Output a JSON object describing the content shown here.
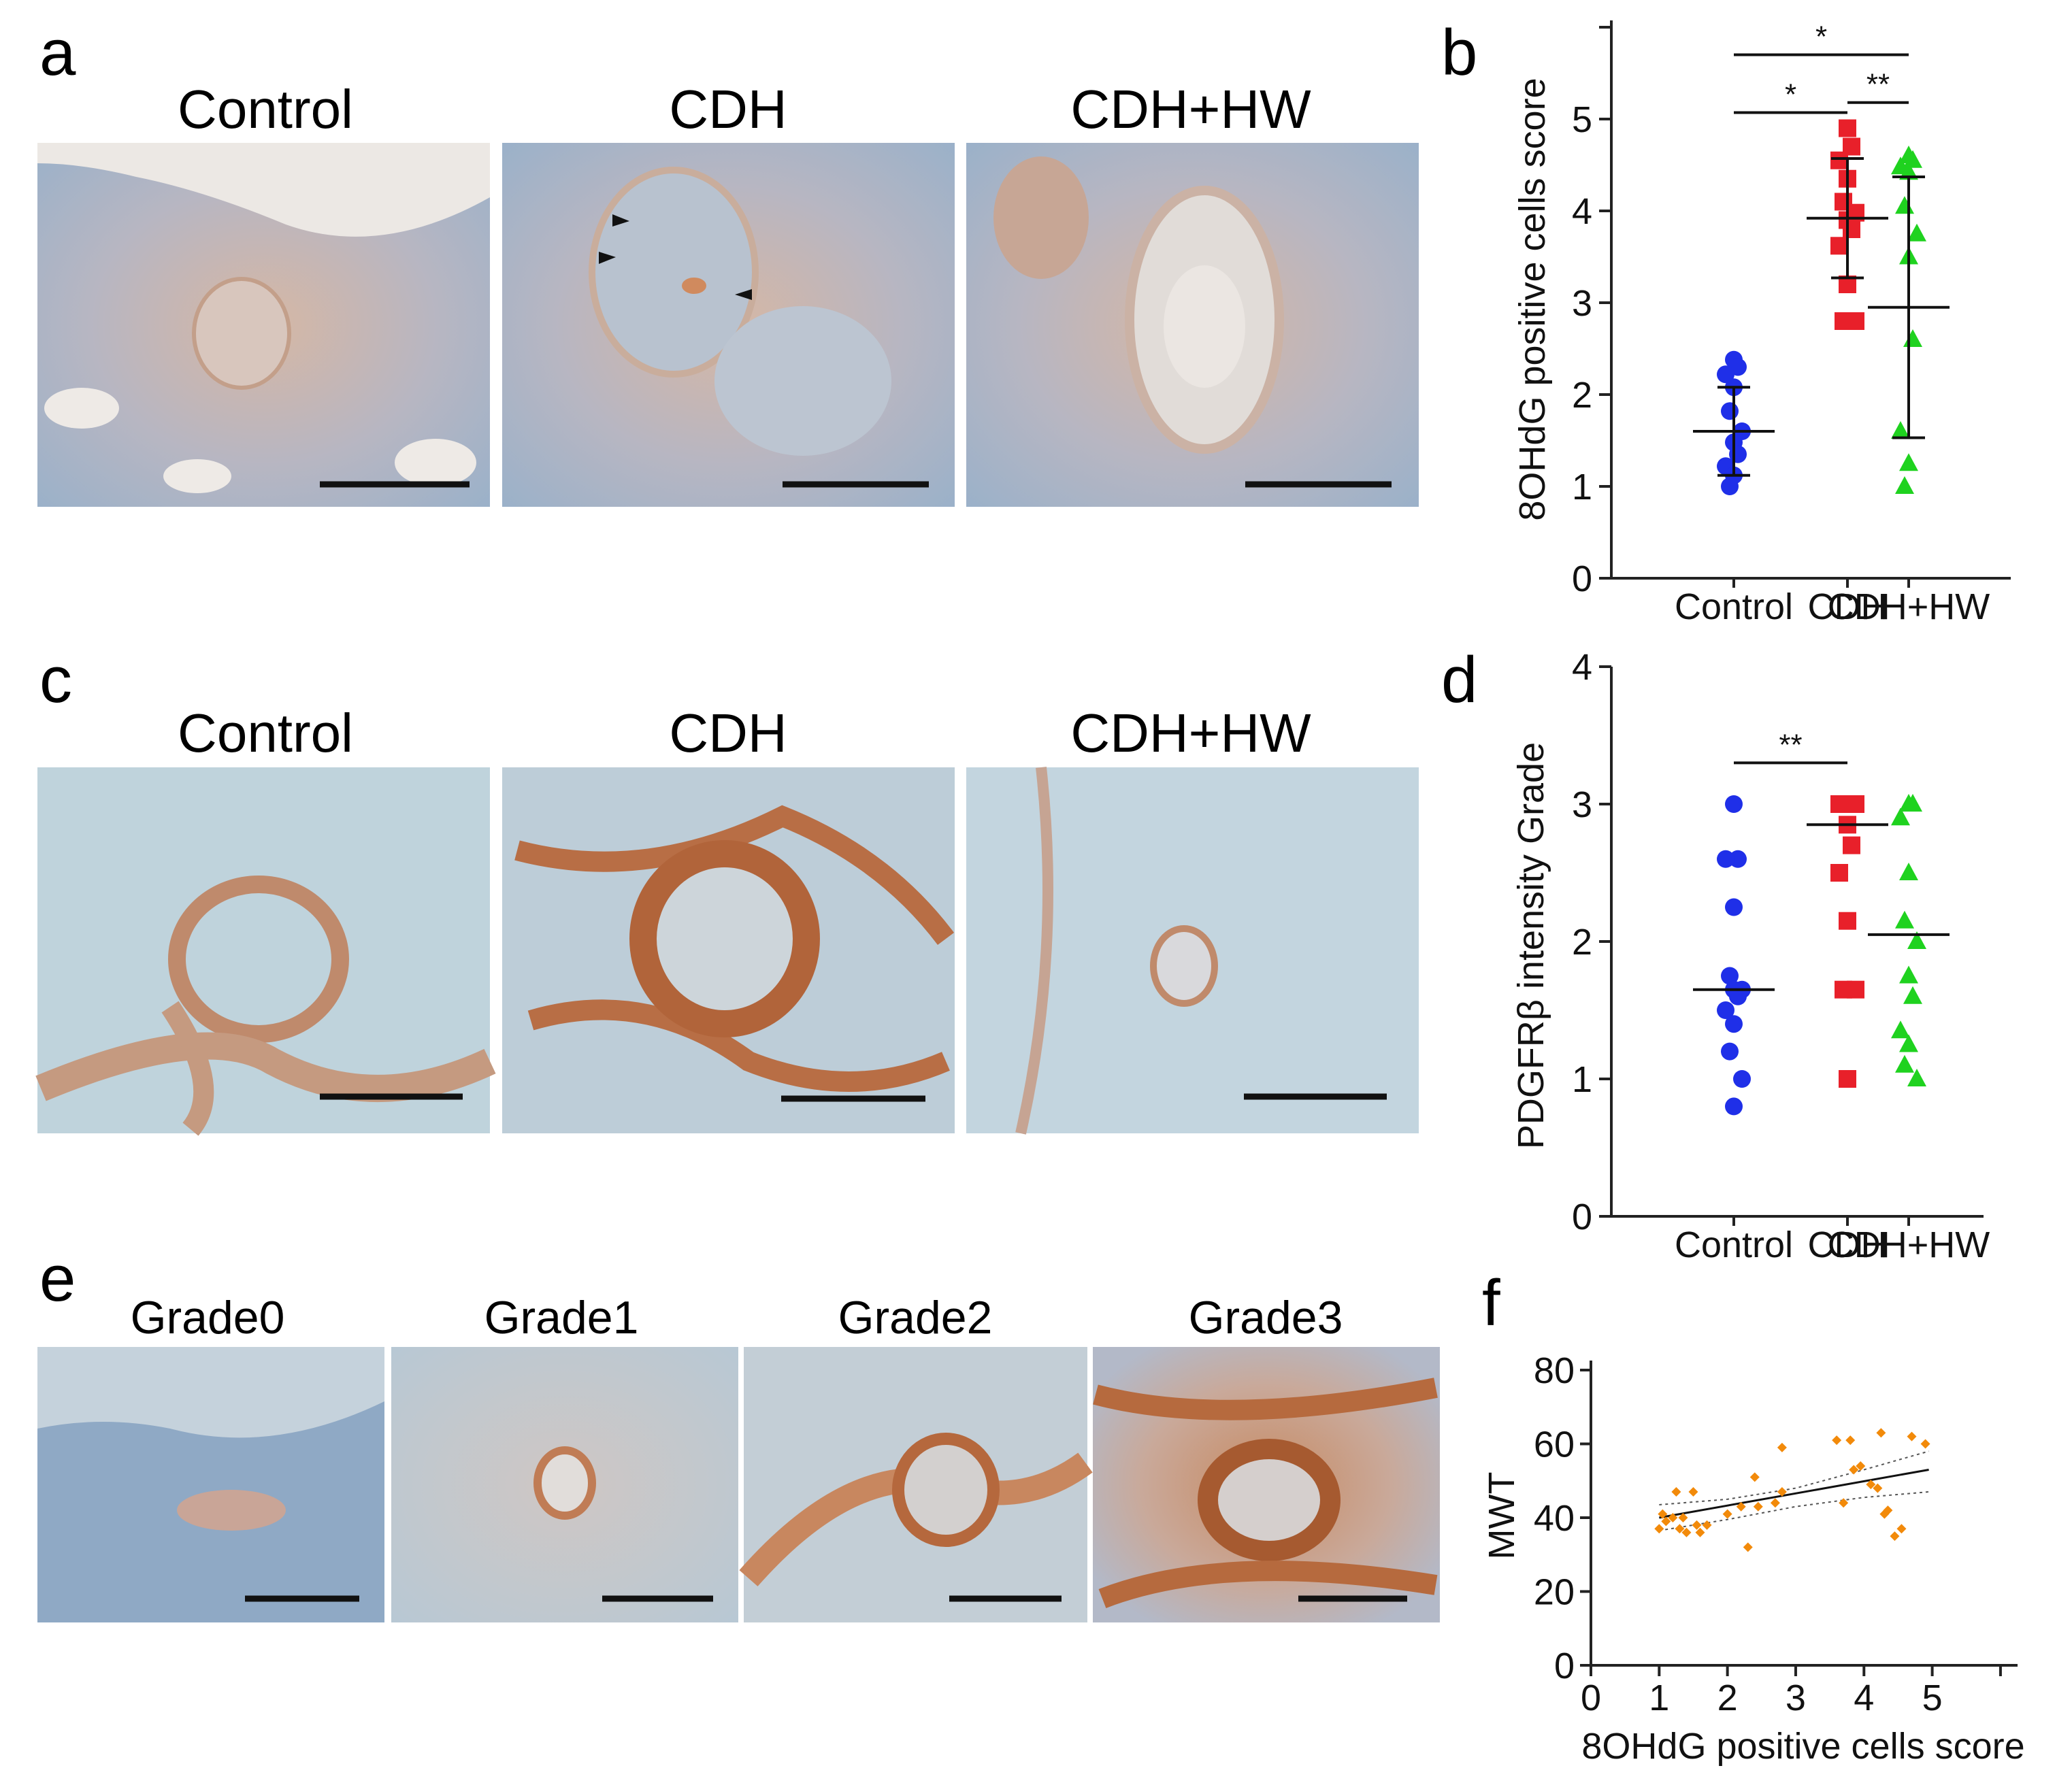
{
  "panel_letters": {
    "a": "a",
    "b": "b",
    "c": "c",
    "d": "d",
    "e": "e",
    "f": "f"
  },
  "images": {
    "a": [
      "Control",
      "CDH",
      "CDH+HW"
    ],
    "c": [
      "Control",
      "CDH",
      "CDH+HW"
    ],
    "e": [
      "Grade0",
      "Grade1",
      "Grade2",
      "Grade3"
    ]
  },
  "chart_data": [
    {
      "id": "b",
      "type": "scatter",
      "ylabel": "8OHdG positive cells score",
      "categories": [
        "Control",
        "CDH",
        "CDH+HW"
      ],
      "ylim": [
        0,
        6
      ],
      "yticks": [
        0,
        1,
        2,
        3,
        4,
        5
      ],
      "series": [
        {
          "name": "Control",
          "color": "#1f2fe8",
          "marker": "circle",
          "values": [
            2.38,
            2.3,
            2.22,
            2.08,
            1.82,
            1.6,
            1.48,
            1.35,
            1.22,
            1.12,
            1.0
          ],
          "mean": 1.6,
          "error": [
            1.12,
            2.08
          ]
        },
        {
          "name": "CDH",
          "color": "#e8202a",
          "marker": "square",
          "values": [
            4.9,
            4.7,
            4.55,
            4.35,
            4.1,
            3.98,
            3.9,
            3.8,
            3.62,
            3.2,
            2.8,
            2.8
          ],
          "mean": 3.92,
          "error": [
            3.27,
            4.57
          ]
        },
        {
          "name": "CDH+HW",
          "color": "#1fd21f",
          "marker": "triangle",
          "values": [
            4.6,
            4.55,
            4.48,
            4.42,
            4.05,
            3.75,
            3.5,
            2.6,
            1.6,
            1.25,
            1.0
          ],
          "mean": 2.95,
          "error": [
            1.53,
            4.37
          ]
        }
      ],
      "significance": [
        {
          "from": 0,
          "to": 2,
          "y": 5.7,
          "label": "*"
        },
        {
          "from": 0,
          "to": 1,
          "y": 5.07,
          "label": "*"
        },
        {
          "from": 1,
          "to": 2,
          "y": 5.18,
          "label": "**"
        }
      ]
    },
    {
      "id": "d",
      "type": "scatter",
      "ylabel": "PDGFRβ intensity Grade",
      "categories": [
        "Control",
        "CDH",
        "CDH+HW"
      ],
      "ylim": [
        0,
        4
      ],
      "yticks": [
        0,
        1,
        2,
        3,
        4
      ],
      "series": [
        {
          "name": "Control",
          "color": "#1f2fe8",
          "marker": "circle",
          "values": [
            3.0,
            2.6,
            2.6,
            2.25,
            1.75,
            1.65,
            1.65,
            1.6,
            1.5,
            1.4,
            1.2,
            1.0,
            0.8
          ],
          "median": 1.65
        },
        {
          "name": "CDH",
          "color": "#e8202a",
          "marker": "square",
          "values": [
            3.0,
            3.0,
            3.0,
            3.0,
            3.0,
            3.0,
            2.85,
            2.7,
            2.5,
            2.15,
            1.65,
            1.65,
            1.0
          ],
          "median": 2.85
        },
        {
          "name": "CDH+HW",
          "color": "#1fd21f",
          "marker": "triangle",
          "values": [
            3.0,
            3.0,
            2.9,
            2.5,
            2.15,
            2.0,
            1.75,
            1.6,
            1.35,
            1.25,
            1.1,
            1.0
          ],
          "median": 2.05
        }
      ],
      "significance": [
        {
          "from": 0,
          "to": 1,
          "y": 3.3,
          "label": "**"
        }
      ]
    },
    {
      "id": "f",
      "type": "scatter",
      "xlabel": "8OHdG positive cells score",
      "ylabel": "MWT",
      "xlim": [
        0,
        6
      ],
      "ylim": [
        0,
        80
      ],
      "xticks": [
        0,
        1,
        2,
        3,
        4,
        5
      ],
      "yticks": [
        0,
        20,
        40,
        60,
        80
      ],
      "color": "#f28a0a",
      "points": [
        [
          1.0,
          37
        ],
        [
          1.05,
          41
        ],
        [
          1.1,
          39
        ],
        [
          1.2,
          40
        ],
        [
          1.25,
          47
        ],
        [
          1.3,
          37
        ],
        [
          1.35,
          40
        ],
        [
          1.4,
          36
        ],
        [
          1.5,
          47
        ],
        [
          1.55,
          38
        ],
        [
          1.6,
          36
        ],
        [
          1.7,
          38
        ],
        [
          2.0,
          41
        ],
        [
          2.2,
          43
        ],
        [
          2.3,
          32
        ],
        [
          2.4,
          51
        ],
        [
          2.45,
          43
        ],
        [
          2.7,
          44
        ],
        [
          2.8,
          47
        ],
        [
          2.8,
          59
        ],
        [
          3.6,
          61
        ],
        [
          3.7,
          44
        ],
        [
          3.8,
          61
        ],
        [
          3.85,
          53
        ],
        [
          3.95,
          54
        ],
        [
          4.1,
          49
        ],
        [
          4.2,
          48
        ],
        [
          4.25,
          63
        ],
        [
          4.3,
          41
        ],
        [
          4.35,
          42
        ],
        [
          4.45,
          35
        ],
        [
          4.55,
          37
        ],
        [
          4.7,
          62
        ],
        [
          4.9,
          60
        ]
      ],
      "fit": {
        "x0": 1.0,
        "y0": 40,
        "x1": 4.95,
        "y1": 53
      },
      "ci_upper": [
        [
          1.0,
          43.5
        ],
        [
          2.0,
          45.0
        ],
        [
          3.0,
          48.0
        ],
        [
          4.0,
          53.0
        ],
        [
          4.95,
          58.0
        ]
      ],
      "ci_lower": [
        [
          1.0,
          36.5
        ],
        [
          2.0,
          39.5
        ],
        [
          3.0,
          43.0
        ],
        [
          4.0,
          45.5
        ],
        [
          4.95,
          47.0
        ]
      ]
    }
  ]
}
